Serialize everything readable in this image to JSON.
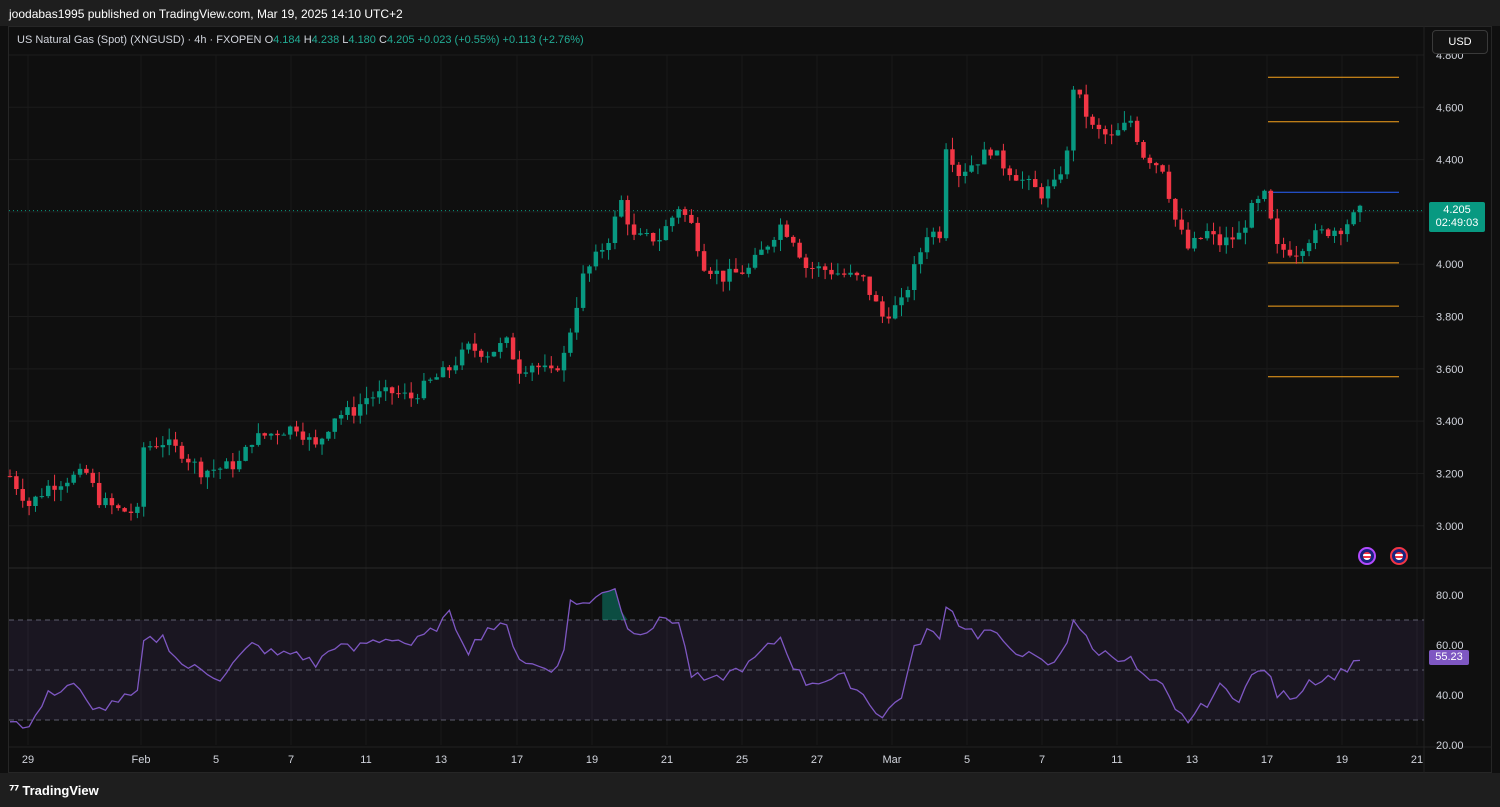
{
  "header": {
    "published": "joodabas1995 published on TradingView.com, Mar 19, 2025 14:10 UTC+2"
  },
  "legend": {
    "symbol": "US Natural Gas (Spot) (XNGUSD) · 4h · FXOPEN",
    "o_label": "O",
    "o_value": "4.184",
    "h_label": "H",
    "h_value": "4.238",
    "l_label": "L",
    "l_value": "4.180",
    "c_label": "C",
    "c_value": "4.205",
    "change": "+0.023 (+0.55%)",
    "change2": "+0.113 (+2.76%)"
  },
  "currency": "USD",
  "price_badge": {
    "price": "4.205",
    "countdown": "02:49:03"
  },
  "rsi_badge": "55.23",
  "footer": {
    "brand": "TradingView"
  },
  "colors": {
    "up": "#089981",
    "down": "#f23645",
    "rsi": "#7e57c2",
    "level": "#f7a21b",
    "line_blue": "#2962ff"
  },
  "chart_data": [
    {
      "type": "candlestick",
      "timeframe": "4h",
      "ylim": [
        2.85,
        4.8
      ],
      "y_ticks": [
        "4.800",
        "4.600",
        "4.400",
        "4.200",
        "4.000",
        "3.800",
        "3.600",
        "3.400",
        "3.200",
        "3.000"
      ],
      "y_tick_values": [
        4.8,
        4.6,
        4.4,
        4.2,
        4.0,
        3.8,
        3.6,
        3.4,
        3.2,
        3.0
      ],
      "x_ticks": [
        "29",
        "Feb",
        "5",
        "7",
        "11",
        "13",
        "17",
        "19",
        "21",
        "25",
        "27",
        "Mar",
        "5",
        "7",
        "11",
        "13",
        "17",
        "19",
        "21"
      ],
      "last_price": 4.205,
      "horizontal_levels": [
        {
          "value": 4.715,
          "color": "orange"
        },
        {
          "value": 4.545,
          "color": "orange"
        },
        {
          "value": 4.275,
          "color": "blue"
        },
        {
          "value": 4.005,
          "color": "orange"
        },
        {
          "value": 3.84,
          "color": "orange"
        },
        {
          "value": 3.57,
          "color": "orange"
        }
      ],
      "close_path": [
        [
          0,
          3.19
        ],
        [
          3,
          3.08
        ],
        [
          6,
          3.15
        ],
        [
          9,
          3.18
        ],
        [
          12,
          3.2
        ],
        [
          14,
          3.1
        ],
        [
          17,
          3.06
        ],
        [
          20,
          3.05
        ],
        [
          21,
          3.3
        ],
        [
          24,
          3.32
        ],
        [
          27,
          3.28
        ],
        [
          30,
          3.21
        ],
        [
          33,
          3.22
        ],
        [
          36,
          3.24
        ],
        [
          38,
          3.33
        ],
        [
          42,
          3.36
        ],
        [
          45,
          3.38
        ],
        [
          48,
          3.3
        ],
        [
          51,
          3.42
        ],
        [
          54,
          3.44
        ],
        [
          56,
          3.49
        ],
        [
          60,
          3.51
        ],
        [
          63,
          3.49
        ],
        [
          66,
          3.55
        ],
        [
          69,
          3.6
        ],
        [
          72,
          3.68
        ],
        [
          75,
          3.66
        ],
        [
          78,
          3.7
        ],
        [
          80,
          3.6
        ],
        [
          82,
          3.62
        ],
        [
          85,
          3.58
        ],
        [
          87,
          3.65
        ],
        [
          90,
          3.95
        ],
        [
          94,
          4.1
        ],
        [
          96,
          4.24
        ],
        [
          98,
          4.1
        ],
        [
          102,
          4.1
        ],
        [
          105,
          4.22
        ],
        [
          107,
          4.15
        ],
        [
          109,
          4.0
        ],
        [
          112,
          3.95
        ],
        [
          116,
          3.98
        ],
        [
          119,
          4.08
        ],
        [
          121,
          4.15
        ],
        [
          123,
          4.1
        ],
        [
          125,
          3.99
        ],
        [
          128,
          3.98
        ],
        [
          131,
          3.96
        ],
        [
          134,
          3.94
        ],
        [
          137,
          3.8
        ],
        [
          140,
          3.85
        ],
        [
          142,
          3.98
        ],
        [
          144,
          4.12
        ],
        [
          146,
          4.12
        ],
        [
          147,
          4.46
        ],
        [
          149,
          4.35
        ],
        [
          152,
          4.4
        ],
        [
          154,
          4.44
        ],
        [
          156,
          4.38
        ],
        [
          159,
          4.32
        ],
        [
          162,
          4.27
        ],
        [
          164,
          4.3
        ],
        [
          166,
          4.42
        ],
        [
          167,
          4.68
        ],
        [
          170,
          4.52
        ],
        [
          173,
          4.48
        ],
        [
          176,
          4.55
        ],
        [
          178,
          4.42
        ],
        [
          181,
          4.37
        ],
        [
          183,
          4.17
        ],
        [
          185,
          4.06
        ],
        [
          188,
          4.12
        ],
        [
          190,
          4.08
        ],
        [
          193,
          4.11
        ],
        [
          195,
          4.21
        ],
        [
          197,
          4.26
        ],
        [
          199,
          4.06
        ],
        [
          202,
          4.05
        ],
        [
          204,
          4.1
        ],
        [
          206,
          4.12
        ],
        [
          209,
          4.14
        ],
        [
          212,
          4.2
        ]
      ]
    },
    {
      "type": "line",
      "name": "RSI",
      "ylim": [
        20,
        90
      ],
      "y_ticks": [
        "80.00",
        "60.00",
        "40.00",
        "20.00"
      ],
      "y_tick_values": [
        80,
        60,
        40,
        20
      ],
      "bands": {
        "upper": 70,
        "middle": 50,
        "lower": 30
      },
      "last_value": 55.23,
      "path": [
        [
          0,
          31
        ],
        [
          3,
          27
        ],
        [
          6,
          40
        ],
        [
          10,
          45
        ],
        [
          13,
          33
        ],
        [
          17,
          38
        ],
        [
          20,
          40
        ],
        [
          21,
          61
        ],
        [
          24,
          63
        ],
        [
          27,
          52
        ],
        [
          30,
          50
        ],
        [
          33,
          47
        ],
        [
          36,
          55
        ],
        [
          38,
          60
        ],
        [
          42,
          56
        ],
        [
          45,
          57
        ],
        [
          48,
          52
        ],
        [
          51,
          60
        ],
        [
          54,
          58
        ],
        [
          56,
          61
        ],
        [
          60,
          63
        ],
        [
          63,
          60
        ],
        [
          66,
          65
        ],
        [
          69,
          72
        ],
        [
          72,
          58
        ],
        [
          75,
          67
        ],
        [
          78,
          67
        ],
        [
          80,
          55
        ],
        [
          82,
          52
        ],
        [
          85,
          50
        ],
        [
          87,
          57
        ],
        [
          88,
          78
        ],
        [
          91,
          76
        ],
        [
          93,
          82
        ],
        [
          95,
          83
        ],
        [
          97,
          66
        ],
        [
          100,
          66
        ],
        [
          103,
          71
        ],
        [
          105,
          69
        ],
        [
          107,
          48
        ],
        [
          110,
          45
        ],
        [
          114,
          50
        ],
        [
          116,
          52
        ],
        [
          118,
          57
        ],
        [
          121,
          63
        ],
        [
          123,
          52
        ],
        [
          125,
          45
        ],
        [
          128,
          46
        ],
        [
          131,
          47
        ],
        [
          134,
          40
        ],
        [
          137,
          31
        ],
        [
          140,
          40
        ],
        [
          142,
          58
        ],
        [
          144,
          66
        ],
        [
          146,
          62
        ],
        [
          147,
          77
        ],
        [
          149,
          69
        ],
        [
          152,
          64
        ],
        [
          154,
          66
        ],
        [
          156,
          60
        ],
        [
          159,
          57
        ],
        [
          162,
          53
        ],
        [
          164,
          52
        ],
        [
          166,
          62
        ],
        [
          167,
          71
        ],
        [
          170,
          58
        ],
        [
          173,
          56
        ],
        [
          176,
          54
        ],
        [
          178,
          47
        ],
        [
          181,
          43
        ],
        [
          183,
          33
        ],
        [
          185,
          30
        ],
        [
          188,
          37
        ],
        [
          190,
          43
        ],
        [
          193,
          39
        ],
        [
          195,
          47
        ],
        [
          197,
          51
        ],
        [
          199,
          40
        ],
        [
          202,
          40
        ],
        [
          204,
          46
        ],
        [
          206,
          46
        ],
        [
          209,
          49
        ],
        [
          212,
          55
        ]
      ]
    }
  ]
}
